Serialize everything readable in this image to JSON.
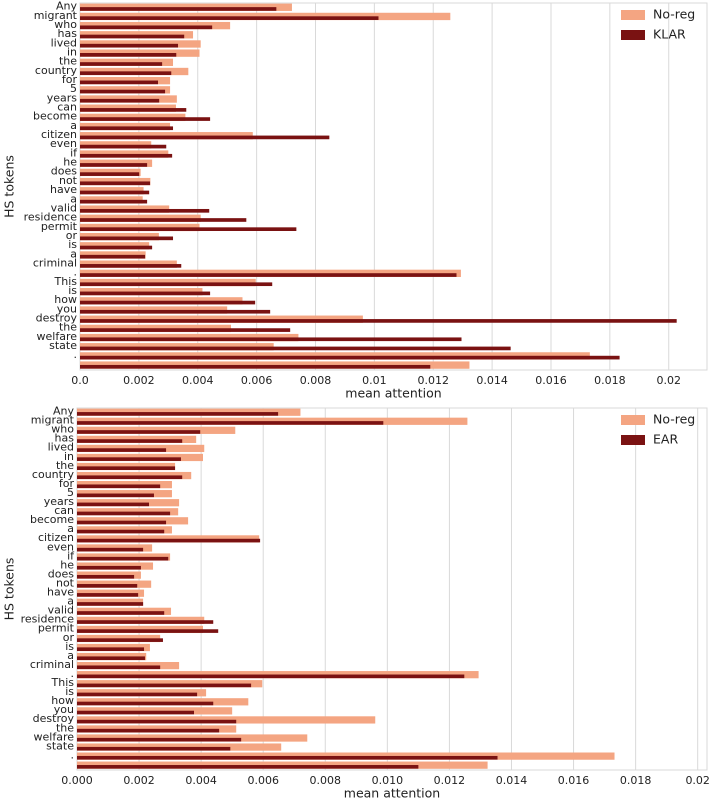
{
  "chart_data": [
    {
      "type": "bar",
      "orientation": "horizontal",
      "xlabel": "mean attention",
      "ylabel": "HS tokens",
      "categories": [
        "Any",
        "migrant",
        "who",
        "has",
        "lived",
        "in",
        "the",
        "country",
        "for",
        "5",
        "years",
        "can",
        "become",
        "a",
        "citizen",
        "even",
        "if",
        "he",
        "does",
        "not",
        "have",
        "a",
        "valid",
        "residence",
        "permit",
        "or",
        "is",
        "a",
        "criminal",
        ".",
        "This",
        "is",
        "how",
        "you",
        "destroy",
        "the",
        "welfare",
        "state",
        ".",
        null
      ],
      "series": [
        {
          "name": "No-reg",
          "color": "#f4a582",
          "values": [
            0.0072,
            0.01258,
            0.0051,
            0.00384,
            0.0041,
            0.00406,
            0.00316,
            0.00368,
            0.00306,
            0.00306,
            0.00329,
            0.00326,
            0.00358,
            0.00306,
            0.00587,
            0.00242,
            0.003,
            0.00245,
            0.00206,
            0.00239,
            0.00216,
            0.00213,
            0.00303,
            0.0041,
            0.00406,
            0.00268,
            0.00235,
            0.00223,
            0.00329,
            0.01294,
            0.00597,
            0.00416,
            0.00552,
            0.005,
            0.00961,
            0.00513,
            0.00742,
            0.00658,
            0.01732,
            0.01323
          ]
        },
        {
          "name": "KLAR",
          "color": "#7a1212",
          "values": [
            0.00667,
            0.01014,
            0.00449,
            0.00354,
            0.00333,
            0.00327,
            0.00279,
            0.0031,
            0.00265,
            0.00289,
            0.00269,
            0.00361,
            0.00442,
            0.00316,
            0.00847,
            0.00293,
            0.00313,
            0.00228,
            0.00201,
            0.00238,
            0.00235,
            0.00228,
            0.00439,
            0.00565,
            0.00735,
            0.00316,
            0.00245,
            0.00221,
            0.00344,
            0.01279,
            0.00653,
            0.00442,
            0.00595,
            0.00646,
            0.02027,
            0.00714,
            0.01296,
            0.01463,
            0.01833,
            0.0119
          ]
        }
      ],
      "xlim": [
        0,
        0.0213
      ],
      "xticks": [
        {
          "value": 0,
          "label": "0.0"
        },
        0.002,
        0.004,
        0.006,
        0.008,
        0.01,
        0.012,
        0.014,
        0.016,
        0.018,
        0.02
      ],
      "grid": true,
      "legend": "upper right"
    },
    {
      "type": "bar",
      "orientation": "horizontal",
      "xlabel": "mean attention",
      "ylabel": "HS tokens",
      "categories": [
        "Any",
        "migrant",
        "who",
        "has",
        "lived",
        "in",
        "the",
        "country",
        "for",
        "5",
        "years",
        "can",
        "become",
        "a",
        "citizen",
        "even",
        "if",
        "he",
        "does",
        "not",
        "have",
        "a",
        "valid",
        "residence",
        "permit",
        "or",
        "is",
        "a",
        "criminal",
        ".",
        "This",
        "is",
        "how",
        "you",
        "destroy",
        "the",
        "welfare",
        "state",
        ".",
        null
      ],
      "series": [
        {
          "name": "No-reg",
          "color": "#f4a582",
          "values": [
            0.0072,
            0.01258,
            0.0051,
            0.00384,
            0.0041,
            0.00406,
            0.00316,
            0.00368,
            0.00306,
            0.00306,
            0.00329,
            0.00326,
            0.00358,
            0.00306,
            0.00587,
            0.00242,
            0.003,
            0.00245,
            0.00206,
            0.00239,
            0.00216,
            0.00213,
            0.00303,
            0.0041,
            0.00406,
            0.00268,
            0.00235,
            0.00223,
            0.00329,
            0.01294,
            0.00597,
            0.00416,
            0.00552,
            0.005,
            0.00961,
            0.00513,
            0.00742,
            0.00658,
            0.01732,
            0.01323
          ]
        },
        {
          "name": "EAR",
          "color": "#7a1212",
          "values": [
            0.00648,
            0.00987,
            0.00397,
            0.00339,
            0.00287,
            0.00335,
            0.00316,
            0.00339,
            0.00268,
            0.00248,
            0.00232,
            0.003,
            0.00287,
            0.00281,
            0.0059,
            0.00213,
            0.00294,
            0.00206,
            0.00184,
            0.00194,
            0.00197,
            0.00213,
            0.00281,
            0.00439,
            0.00455,
            0.00277,
            0.00216,
            0.00219,
            0.00268,
            0.01248,
            0.00561,
            0.00387,
            0.00439,
            0.00377,
            0.00513,
            0.00458,
            0.00529,
            0.00494,
            0.01355,
            0.011
          ]
        }
      ],
      "xlim": [
        0,
        0.0203
      ],
      "xticks": [
        {
          "value": 0,
          "label": "0.000"
        },
        0.002,
        0.004,
        0.006,
        0.008,
        {
          "value": 0.01,
          "label": "0.010"
        },
        0.012,
        0.014,
        0.016,
        0.018,
        0.02
      ],
      "grid": true,
      "legend": "upper right"
    }
  ]
}
